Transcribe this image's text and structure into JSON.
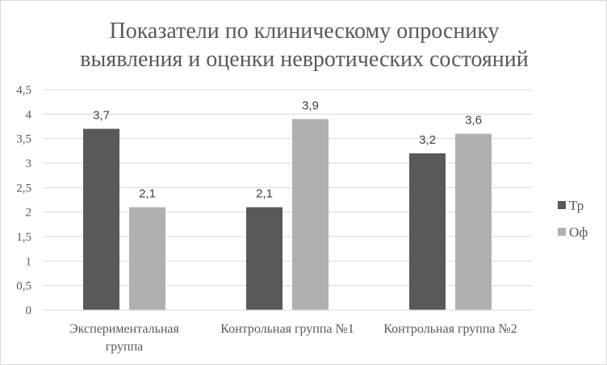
{
  "chart_data": {
    "type": "bar",
    "title": [
      "Показатели по клиническому опроснику",
      "выявления и оценки невротических состояний"
    ],
    "categories": [
      [
        "Экспериментальная",
        "группа"
      ],
      [
        "Контрольная группа №1"
      ],
      [
        "Контрольная группа №2"
      ]
    ],
    "series": [
      {
        "name": "Тр",
        "values": [
          3.7,
          2.1,
          3.2
        ],
        "labels": [
          "3,7",
          "2,1",
          "3,2"
        ],
        "color": "#595959"
      },
      {
        "name": "Оф",
        "values": [
          2.1,
          3.9,
          3.6
        ],
        "labels": [
          "2,1",
          "3,9",
          "3,6"
        ],
        "color": "#b0b0b0"
      }
    ],
    "ylim": [
      0,
      4.5
    ],
    "yticks": [
      "0",
      "0,5",
      "1",
      "1,5",
      "2",
      "2,5",
      "3",
      "3,5",
      "4",
      "4,5"
    ],
    "xlabel": "",
    "ylabel": "",
    "grid": true,
    "legend_position": "right",
    "gridline_color": "#d9d9d9"
  }
}
